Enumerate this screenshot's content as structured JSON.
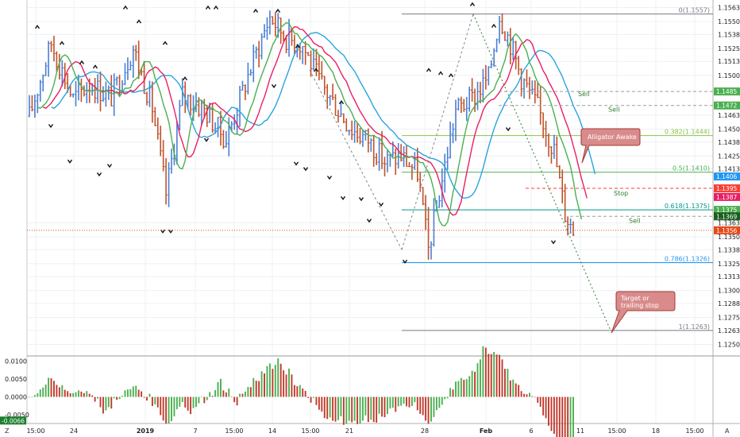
{
  "chart_data": {
    "type": "candlestick",
    "price_axis": {
      "ticks": [
        "1.1563",
        "1.1550",
        "1.1538",
        "1.1525",
        "1.1513",
        "1.1500",
        "1.1463",
        "1.1450",
        "1.1438",
        "1.1425",
        "1.1413",
        "1.1363",
        "1.1350",
        "1.1338",
        "1.1325",
        "1.1313",
        "1.1300",
        "1.1288",
        "1.1275",
        "1.1263",
        "1.1250"
      ],
      "range": [
        1.124,
        1.157
      ]
    },
    "price_tags": [
      {
        "label": "1.1485",
        "value": 1.1485,
        "color": "#4caf50"
      },
      {
        "label": "1.1472",
        "value": 1.1472,
        "color": "#4caf50"
      },
      {
        "label": "1.1406",
        "value": 1.1406,
        "color": "#2196f3"
      },
      {
        "label": "1.1395",
        "value": 1.1395,
        "color": "#f44336"
      },
      {
        "label": "1.1387",
        "value": 1.1387,
        "color": "#e91e63"
      },
      {
        "label": "1.1375",
        "value": 1.1375,
        "color": "#4caf50"
      },
      {
        "label": "1.1369",
        "value": 1.1369,
        "color": "#1b5e20"
      },
      {
        "label": "1.1356",
        "value": 1.1356,
        "color": "#e64a19"
      }
    ],
    "time_axis": {
      "labels": [
        "15:00",
        "24",
        "2019",
        "7",
        "15:00",
        "14",
        "15:00",
        "21",
        "28",
        "Feb",
        "6",
        "11",
        "15:00",
        "18",
        "15:00",
        "25"
      ]
    },
    "fib_levels": [
      {
        "label": "0(1.1557)",
        "value": 1.1557,
        "color": "#787b86"
      },
      {
        "label": "0.382(1.1444)",
        "value": 1.1444,
        "color": "#8bc34a"
      },
      {
        "label": "0.5(1.1410)",
        "value": 1.141,
        "color": "#4caf50"
      },
      {
        "label": "0.618(1.1375)",
        "value": 1.1375,
        "color": "#009688"
      },
      {
        "label": "0.786(1.1326)",
        "value": 1.1326,
        "color": "#2196f3"
      },
      {
        "label": "1(1.1263)",
        "value": 1.1263,
        "color": "#787b86"
      }
    ],
    "annotations": {
      "callout_1": "Alligator Awake",
      "callout_2_line1": "Target or",
      "callout_2_line2": "trailing stop",
      "sell_1": "Sell",
      "sell_2": "Sell",
      "sell_3": "Sell",
      "stop": "Stop"
    },
    "oscillator": {
      "ticks": [
        "0.0100",
        "0.0050",
        "0.0000",
        "-0.0050"
      ],
      "range": [
        -0.0072,
        0.0112
      ],
      "current_label": "-0.0066",
      "current_value": -0.0066
    },
    "corner_left": "Z",
    "corner_right": "A",
    "colors": {
      "up": "#4a7fd4",
      "down": "#c0522a",
      "jaw": "#29a3e0",
      "teeth": "#e91e63",
      "lips": "#4caf50",
      "osc_up": "#4caf50",
      "osc_down": "#c0392b",
      "callout_fill": "#d98b8b",
      "callout_stroke": "#a33a3a"
    }
  }
}
